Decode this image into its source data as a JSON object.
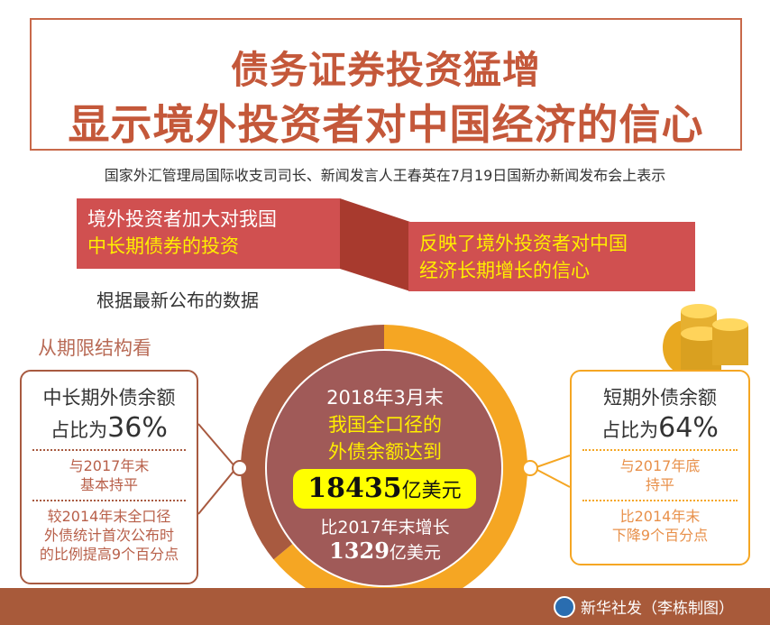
{
  "title": {
    "line1": "债务证券投资猛增",
    "line2": "显示境外投资者对中国经济的信心"
  },
  "subtitle": "国家外汇管理局国际收支司司长、新闻发言人王春英在7月19日国新办新闻发布会上表示",
  "banner_left": {
    "line1": "境外投资者加大对我国",
    "line2": "中长期债券的投资"
  },
  "banner_right": {
    "line1": "反映了境外投资者对中国",
    "line2": "经济长期增长的信心"
  },
  "basis": "根据最新公布的数据",
  "structure_label": "从期限结构看",
  "left_box": {
    "head1": "中长期外债余额",
    "head2": "占比为",
    "pct": "36%",
    "note1a": "与2017年末",
    "note1b": "基本持平",
    "note2a": "较2014年末全口径",
    "note2b": "外债统计首次公布时",
    "note2c": "的比例提高9个百分点"
  },
  "right_box": {
    "head1": "短期外债余额",
    "head2": "占比为",
    "pct": "64%",
    "note1a": "与2017年底",
    "note1b": "持平",
    "note2a": "比2014年末",
    "note2b": "下降9个百分点"
  },
  "center": {
    "date": "2018年3月末",
    "line1": "我国全口径的",
    "line2": "外债余额达到",
    "amount": "18435",
    "unit": "亿美元",
    "inc_label": "比2017年末增长",
    "inc_amount": "1329",
    "inc_unit": "亿美元"
  },
  "donut": {
    "long_term_share": 36,
    "short_term_share": 64,
    "colors": {
      "long_term": "#a85a40",
      "short_term": "#f5a623",
      "center": "#a05a58"
    }
  },
  "credit": "新华社发（李栋制图）"
}
